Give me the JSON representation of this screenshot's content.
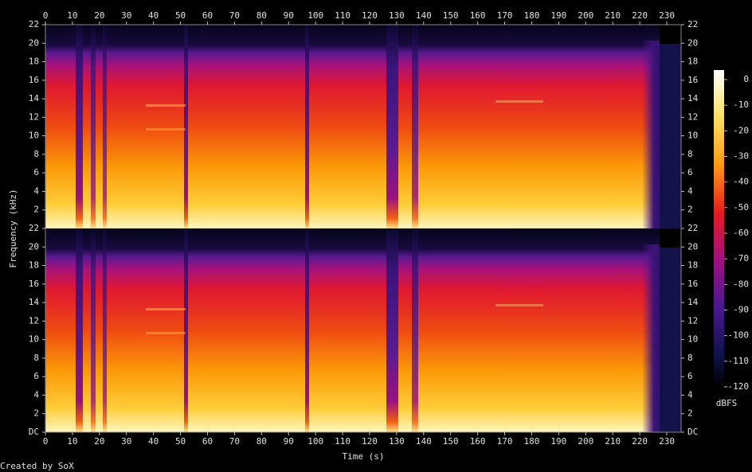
{
  "chart_data": {
    "type": "spectrogram",
    "x_label": "Time (s)",
    "y_label": "Frequency (kHz)",
    "xlim": [
      0,
      235.3
    ],
    "xticks": [
      0,
      10,
      20,
      30,
      40,
      50,
      60,
      70,
      80,
      90,
      100,
      110,
      120,
      130,
      140,
      150,
      160,
      170,
      180,
      190,
      200,
      210,
      220,
      230
    ],
    "panels": [
      {
        "ylim": [
          0,
          22
        ],
        "yticks": [
          2,
          4,
          6,
          8,
          10,
          12,
          14,
          16,
          18,
          20,
          22
        ]
      },
      {
        "ylim": [
          0,
          22
        ],
        "yticks": [
          {
            "value": 0,
            "label": "DC"
          },
          2,
          4,
          6,
          8,
          10,
          12,
          14,
          16,
          18,
          20,
          22
        ]
      }
    ],
    "colorbar": {
      "label": "dBFS",
      "lim": [
        -120,
        0
      ],
      "ticks": [
        0,
        -10,
        -20,
        -30,
        -40,
        -50,
        -60,
        -70,
        -80,
        -90,
        -100,
        -110,
        -120
      ]
    },
    "credit": "Created by SoX"
  }
}
